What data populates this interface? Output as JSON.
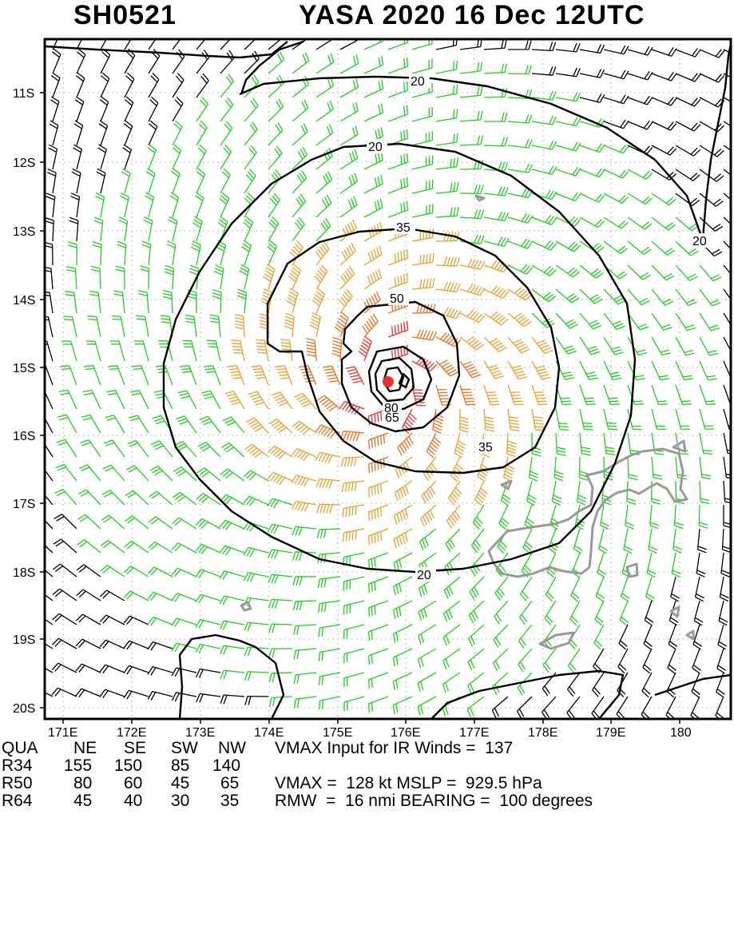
{
  "title": {
    "storm_id": "SH0521",
    "storm_info": "YASA 2020 16 Dec 12UTC"
  },
  "map": {
    "lat_labels": [
      "11S",
      "12S",
      "13S",
      "14S",
      "15S",
      "16S",
      "17S",
      "18S",
      "19S",
      "20S"
    ],
    "lon_labels": [
      "171E",
      "172E",
      "173E",
      "174E",
      "175E",
      "176E",
      "177E",
      "178E",
      "179E",
      "180"
    ],
    "contour_labels": [
      "20",
      "20",
      "20",
      "35",
      "35",
      "50",
      "80",
      "65",
      "20"
    ],
    "colors": {
      "calm": "#000000",
      "gale": "#22cc22",
      "storm": "#e8a030",
      "strong": "#e87020",
      "hurricane": "#e83030",
      "land": "#999999"
    }
  },
  "table": {
    "header": [
      "QUA",
      "NE",
      "SE",
      "SW",
      "NW"
    ],
    "rows": [
      [
        "R34",
        "155",
        "150",
        "85",
        "140"
      ],
      [
        "R50",
        "80",
        "60",
        "45",
        "65"
      ],
      [
        "R64",
        "45",
        "40",
        "30",
        "35"
      ]
    ]
  },
  "info": {
    "line1": "VMAX Input for IR Winds =  137",
    "line2": "VMAX =  128 kt MSLP =  929.5 hPa",
    "line3": "RMW  =  16 nmi BEARING =  100 degrees"
  }
}
